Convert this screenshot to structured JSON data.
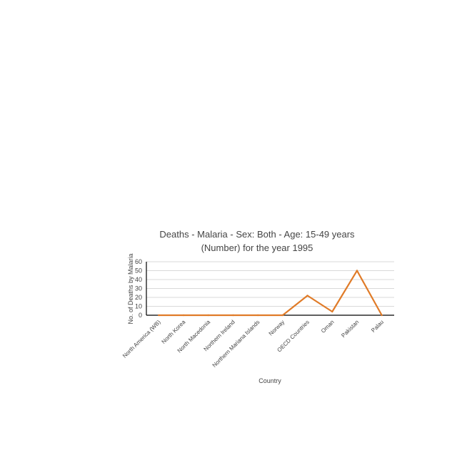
{
  "chart_data": {
    "type": "line",
    "title_line1": "Deaths - Malaria - Sex: Both - Age: 15-49 years",
    "title_line2": "(Number) for the year 1995",
    "xlabel": "Country",
    "ylabel": "No. of Deaths by Malaria",
    "categories": [
      "North America (WB)",
      "North Korea",
      "North Macedonia",
      "Northern Ireland",
      "Northern Mariana Islands",
      "Norway",
      "OECD Countries",
      "Oman",
      "Pakistan",
      "Palau"
    ],
    "series": [
      {
        "values": [
          0,
          0,
          0,
          0,
          0,
          0,
          22,
          4,
          50,
          0
        ],
        "color": "#E07B28"
      }
    ],
    "ylim": [
      0,
      60
    ],
    "yticks": [
      0,
      10,
      20,
      30,
      40,
      50,
      60
    ],
    "grid": true,
    "legend": "none"
  }
}
